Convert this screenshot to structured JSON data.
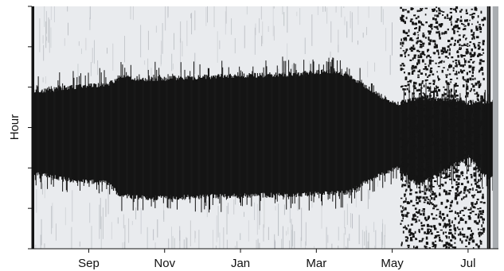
{
  "chart_data": {
    "type": "heatmap",
    "title": "",
    "xlabel": "",
    "ylabel": "Hour",
    "x_tick_labels": [
      "Sep",
      "Nov",
      "Jan",
      "Mar",
      "May",
      "Jul"
    ],
    "x_tick_positions": [
      1.5,
      3.5,
      5.5,
      7.5,
      9.5,
      11.5
    ],
    "xlim": [
      0,
      12.3
    ],
    "ylim": [
      0,
      24
    ],
    "y_tick_values": [
      0,
      4,
      8,
      12,
      16,
      20,
      24
    ],
    "y_tick_labels_shown": false,
    "colors": {
      "active": "#141414",
      "inactive": "#e9ebee",
      "speckle": "#b4b8bd"
    },
    "active_band": {
      "x": [
        0,
        1.0,
        2.0,
        2.3,
        3.0,
        4.0,
        5.0,
        6.0,
        7.0,
        7.8,
        8.3,
        9.0,
        9.6,
        10.2,
        11.0,
        11.5,
        12.0,
        12.3
      ],
      "start_hour": [
        15.5,
        16.0,
        16.3,
        17.0,
        16.8,
        16.9,
        17.1,
        17.2,
        17.3,
        17.6,
        17.3,
        15.5,
        14.3,
        15.0,
        14.8,
        14.5,
        14.5,
        15.0
      ],
      "end_hour": [
        7.5,
        6.8,
        6.5,
        5.3,
        5.0,
        5.1,
        5.2,
        5.3,
        5.3,
        5.5,
        5.6,
        7.0,
        8.0,
        6.3,
        8.0,
        9.0,
        7.0,
        7.5
      ]
    },
    "scattered_activity_period": [
      9.7,
      11.9
    ]
  }
}
